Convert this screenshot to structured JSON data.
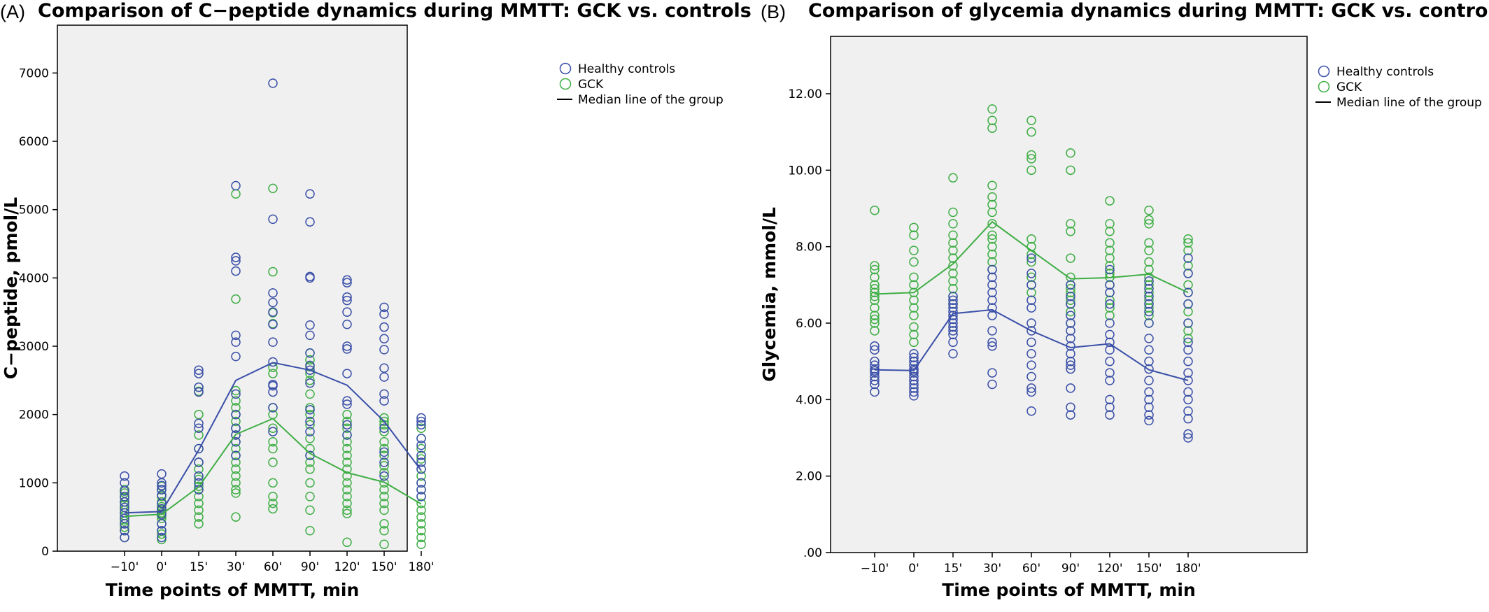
{
  "chart_data": [
    {
      "type": "scatter",
      "panel": "(A)",
      "title": "Comparison of C−peptide dynamics during MMTT: GCK vs. controls",
      "xlabel": "Time points of MMTT, min",
      "ylabel": "C−peptide,  pmol/L",
      "categories": [
        "−10'",
        "0'",
        "15'",
        "30'",
        "60'",
        "90'",
        "120'",
        "150'",
        "180'"
      ],
      "ylim": [
        0,
        7700
      ],
      "yticks": [
        0,
        1000,
        2000,
        3000,
        4000,
        5000,
        6000,
        7000
      ],
      "ytick_labels": [
        "0",
        "1000",
        "2000",
        "3000",
        "4000",
        "5000",
        "6000",
        "7000"
      ],
      "grid": false,
      "legend_position": "outside-top-right",
      "legend": [
        "Healthy controls",
        "GCK",
        "Median line of the group"
      ],
      "series": [
        {
          "name": "Healthy controls",
          "color": "#3a4fa8",
          "median": [
            560,
            580,
            1480,
            2500,
            2760,
            2650,
            2430,
            1900,
            1180
          ],
          "points": [
            [
              1100,
              1000,
              880,
              800,
              720,
              640,
              560,
              480,
              400,
              300,
              200
            ],
            [
              1130,
              1000,
              960,
              900,
              820,
              700,
              620,
              540,
              400,
              300,
              200
            ],
            [
              2650,
              2600,
              2400,
              2330,
              1870,
              1800,
              1500,
              1300,
              1100,
              1000,
              900
            ],
            [
              5350,
              4300,
              4250,
              4100,
              3160,
              3060,
              2850,
              2300,
              2000,
              1800,
              1700,
              1600,
              1400
            ],
            [
              6850,
              4860,
              3780,
              3640,
              3500,
              3320,
              3060,
              2770,
              2440,
              2420,
              2330,
              2100,
              1750
            ],
            [
              5230,
              4820,
              4020,
              4000,
              3310,
              3160,
              2900,
              2720,
              2650,
              2460,
              2070,
              1900,
              1750,
              1400
            ],
            [
              3970,
              3930,
              3720,
              3670,
              3500,
              3320,
              3000,
              2960,
              2600,
              2200,
              2150,
              1850,
              1700
            ],
            [
              3570,
              3470,
              3280,
              3110,
              2950,
              2680,
              2550,
              2300,
              2200,
              1800,
              1450,
              1300,
              1100
            ],
            [
              1950,
              1900,
              1850,
              1650,
              1550,
              1400,
              1300,
              1200,
              1000,
              900,
              800
            ]
          ]
        },
        {
          "name": "GCK",
          "color": "#3fae45",
          "median": [
            510,
            540,
            940,
            1710,
            1940,
            1430,
            1150,
            1010,
            690
          ],
          "points": [
            [
              900,
              850,
              780,
              720,
              680,
              640,
              600,
              560,
              520,
              480,
              440,
              400,
              350,
              300,
              200
            ],
            [
              950,
              900,
              800,
              720,
              650,
              600,
              560,
              520,
              480,
              400,
              300,
              250,
              170
            ],
            [
              2400,
              2340,
              2000,
              1700,
              1500,
              1300,
              1200,
              1050,
              950,
              900,
              800,
              700,
              600,
              500,
              400
            ],
            [
              5230,
              3690,
              2350,
              2200,
              2100,
              2000,
              1900,
              1800,
              1700,
              1600,
              1500,
              1400,
              1300,
              1200,
              1100,
              1000,
              900,
              850,
              500
            ],
            [
              5310,
              4090,
              3490,
              3330,
              2690,
              2600,
              2100,
              2000,
              1800,
              1600,
              1500,
              1300,
              1000,
              800,
              700,
              620
            ],
            [
              2900,
              2800,
              2700,
              2600,
              2500,
              2300,
              2100,
              2000,
              1850,
              1650,
              1500,
              1400,
              1300,
              1200,
              1000,
              800,
              600,
              300
            ],
            [
              2000,
              1900,
              1800,
              1700,
              1600,
              1500,
              1400,
              1300,
              1200,
              1100,
              1000,
              900,
              800,
              700,
              600,
              550,
              130
            ],
            [
              1950,
              1900,
              1850,
              1750,
              1600,
              1500,
              1400,
              1250,
              1150,
              1000,
              900,
              800,
              700,
              600,
              400,
              300,
              100
            ],
            [
              1800,
              1650,
              1500,
              1350,
              1200,
              1100,
              1000,
              900,
              800,
              700,
              600,
              500,
              400,
              300,
              200,
              100
            ]
          ]
        }
      ]
    },
    {
      "type": "scatter",
      "panel": "(B)",
      "title": "Comparison of glycemia dynamics during MMTT: GCK vs. controls",
      "xlabel": "Time points of MMTT, min",
      "ylabel": "Glycemia,  mmol/L",
      "categories": [
        "−10'",
        "0'",
        "15'",
        "30'",
        "60'",
        "90'",
        "120'",
        "150'",
        "180'"
      ],
      "ylim": [
        0,
        13.5
      ],
      "yticks": [
        0,
        2,
        4,
        6,
        8,
        10,
        12
      ],
      "ytick_labels": [
        ".00",
        "2.00",
        "4.00",
        "6.00",
        "8.00",
        "10.00",
        "12.00"
      ],
      "grid": false,
      "legend_position": "outside-top-right",
      "legend": [
        "Healthy controls",
        "GCK",
        "Median line of the group"
      ],
      "series": [
        {
          "name": "Healthy controls",
          "color": "#3a4fa8",
          "median": [
            4.78,
            4.76,
            6.25,
            6.35,
            5.8,
            5.36,
            5.46,
            4.78,
            4.5
          ],
          "points": [
            [
              5.4,
              5.3,
              5.0,
              4.9,
              4.8,
              4.75,
              4.7,
              4.6,
              4.5,
              4.4,
              4.2
            ],
            [
              5.2,
              5.1,
              5.0,
              4.9,
              4.8,
              4.75,
              4.7,
              4.6,
              4.5,
              4.4,
              4.3,
              4.2,
              4.1
            ],
            [
              6.7,
              6.6,
              6.5,
              6.4,
              6.3,
              6.2,
              6.1,
              6.0,
              5.9,
              5.8,
              5.7,
              5.5,
              5.2
            ],
            [
              7.4,
              7.2,
              7.0,
              6.8,
              6.6,
              6.4,
              6.2,
              5.8,
              5.5,
              5.4,
              4.7,
              4.4
            ],
            [
              7.7,
              7.3,
              7.0,
              6.6,
              6.4,
              6.0,
              5.8,
              5.5,
              5.2,
              4.9,
              4.6,
              4.3,
              4.2,
              3.7
            ],
            [
              7.0,
              6.7,
              6.5,
              6.2,
              6.0,
              5.8,
              5.6,
              5.4,
              5.2,
              5.0,
              4.9,
              4.8,
              4.3,
              3.8,
              3.6
            ],
            [
              7.4,
              7.0,
              6.8,
              6.5,
              6.0,
              5.7,
              5.5,
              5.3,
              5.0,
              4.7,
              4.5,
              4.0,
              3.8,
              3.6
            ],
            [
              7.1,
              6.9,
              6.7,
              6.5,
              6.3,
              6.0,
              5.6,
              5.3,
              5.0,
              4.8,
              4.5,
              4.2,
              4.0,
              3.8,
              3.6,
              3.45
            ],
            [
              7.7,
              7.3,
              6.8,
              6.5,
              6.0,
              5.5,
              5.3,
              5.0,
              4.7,
              4.5,
              4.2,
              4.0,
              3.7,
              3.5,
              3.1,
              3.0
            ]
          ]
        },
        {
          "name": "GCK",
          "color": "#3fae45",
          "median": [
            6.76,
            6.8,
            7.55,
            8.65,
            7.9,
            7.16,
            7.19,
            7.28,
            6.8
          ],
          "points": [
            [
              8.95,
              7.5,
              7.4,
              7.2,
              7.0,
              6.9,
              6.8,
              6.7,
              6.6,
              6.4,
              6.2,
              6.1,
              6.0,
              5.8
            ],
            [
              8.5,
              8.3,
              7.9,
              7.6,
              7.2,
              7.0,
              6.8,
              6.6,
              6.4,
              6.2,
              5.9,
              5.7,
              5.5
            ],
            [
              9.8,
              8.9,
              8.6,
              8.3,
              8.1,
              7.9,
              7.7,
              7.5,
              7.3,
              7.1,
              6.9,
              6.7,
              6.5
            ],
            [
              11.6,
              11.3,
              11.1,
              9.6,
              9.3,
              9.1,
              8.9,
              8.6,
              8.3,
              8.2,
              8.0,
              7.8,
              7.6,
              7.4
            ],
            [
              11.3,
              11.0,
              10.4,
              10.3,
              10.0,
              8.2,
              8.0,
              7.8,
              7.6,
              7.2,
              7.0,
              6.8
            ],
            [
              10.45,
              10.0,
              8.6,
              8.4,
              7.7,
              7.2,
              7.0,
              6.9,
              6.8,
              6.6,
              6.5,
              6.3,
              6.0
            ],
            [
              9.2,
              8.6,
              8.4,
              8.1,
              7.9,
              7.7,
              7.5,
              7.3,
              7.2,
              7.0,
              6.8,
              6.6,
              6.4,
              6.2
            ],
            [
              8.95,
              8.7,
              8.6,
              8.1,
              7.9,
              7.6,
              7.4,
              7.2,
              7.0,
              6.8,
              6.6,
              6.4,
              6.2,
              6.0
            ],
            [
              8.2,
              8.1,
              7.9,
              7.5,
              7.3,
              7.0,
              6.8,
              6.5,
              6.3,
              6.0,
              5.8,
              5.6
            ]
          ]
        }
      ]
    }
  ]
}
